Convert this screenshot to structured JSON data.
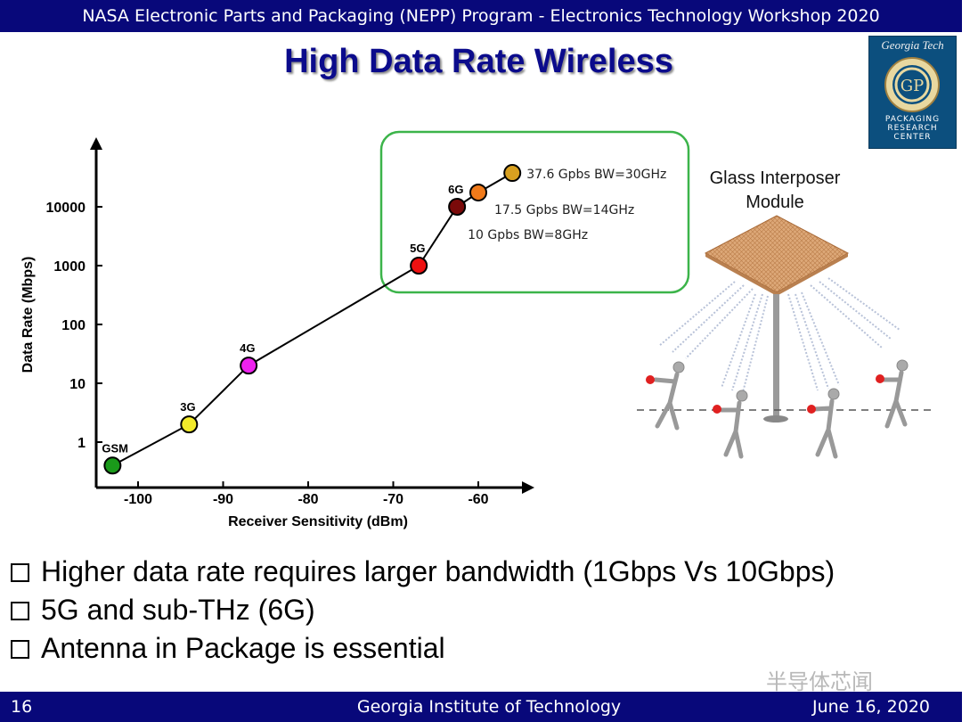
{
  "header": {
    "workshop": "NASA Electronic Parts and Packaging (NEPP) Program - Electronics Technology Workshop 2020"
  },
  "slide": {
    "title": "High Data Rate Wireless"
  },
  "logo": {
    "name": "Georgia Tech",
    "subtitle": [
      "PACKAGING",
      "RESEARCH",
      "CENTER"
    ]
  },
  "chart_data": {
    "type": "line",
    "xlabel": "Receiver Sensitivity (dBm)",
    "ylabel": "Data Rate (Mbps)",
    "x_ticks": [
      -100,
      -90,
      -80,
      -70,
      -60
    ],
    "y_ticks": [
      {
        "label": "1",
        "value": 1
      },
      {
        "label": "10",
        "value": 10
      },
      {
        "label": "100",
        "value": 100
      },
      {
        "label": "1000",
        "value": 1000
      },
      {
        "label": "10000",
        "value": 10000
      }
    ],
    "y_scale": "log",
    "series": [
      {
        "points": [
          {
            "label": "GSM",
            "x": -103,
            "y": 0.4,
            "color": "#1a9a1a"
          },
          {
            "label": "3G",
            "x": -94,
            "y": 2,
            "color": "#f2ea2a"
          },
          {
            "label": "4G",
            "x": -87,
            "y": 20,
            "color": "#ee22ee"
          },
          {
            "label": "5G",
            "x": -67,
            "y": 1000,
            "color": "#ee1111"
          },
          {
            "label": "6G",
            "x": -62.5,
            "y": 10000,
            "color": "#7a0a0a",
            "annotation": "10 Gpbs BW=8GHz"
          },
          {
            "label": "",
            "x": -60,
            "y": 17500,
            "color": "#f07a1a",
            "annotation": "17.5 Gpbs BW=14GHz"
          },
          {
            "label": "",
            "x": -56,
            "y": 37600,
            "color": "#d8a020",
            "annotation": "37.6 Gpbs BW=30GHz"
          }
        ]
      }
    ],
    "highlight_color": "#3cb44a"
  },
  "illustration": {
    "label": "Glass Interposer\nModule"
  },
  "bullets": [
    "Higher data rate requires larger bandwidth (1Gbps Vs 10Gbps)",
    "5G and sub-THz (6G)",
    "Antenna in Package is essential"
  ],
  "watermark": "半导体芯闻",
  "footer": {
    "page": "16",
    "institution": "Georgia Institute of Technology",
    "date": "June 16, 2020"
  }
}
